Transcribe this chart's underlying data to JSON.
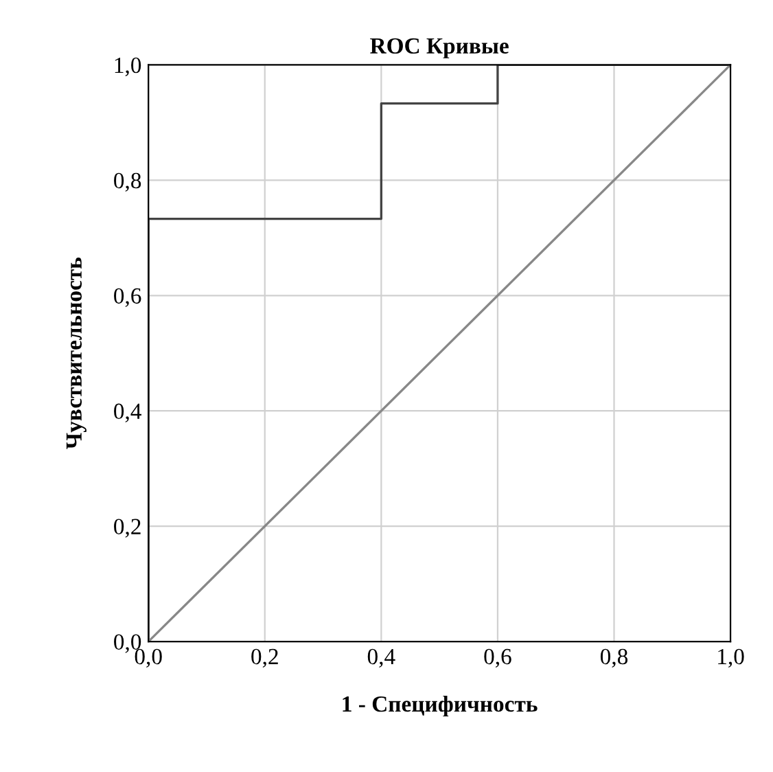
{
  "chart_data": {
    "type": "line",
    "title": "ROC Кривые",
    "xlabel": "1 - Специфичность",
    "ylabel": "Чувствительность",
    "series": [
      {
        "color": "#444444",
        "x": [
          0,
          0,
          0.4,
          0.4,
          0.6,
          0.6,
          1.0
        ],
        "values": [
          0,
          0.733,
          0.733,
          0.933,
          0.933,
          1.0,
          1.0
        ]
      },
      {
        "color": "#888888",
        "x": [
          0,
          1.0
        ],
        "values": [
          0,
          1.0
        ]
      }
    ],
    "xlim": [
      0,
      1.0
    ],
    "ylim": [
      0,
      1.0
    ],
    "xticks": [
      {
        "value": 0,
        "label": "0,0"
      },
      {
        "value": 0.2,
        "label": "0,2"
      },
      {
        "value": 0.4,
        "label": "0,4"
      },
      {
        "value": 0.6,
        "label": "0,6"
      },
      {
        "value": 0.8,
        "label": "0,8"
      },
      {
        "value": 1.0,
        "label": "1,0"
      }
    ],
    "yticks": [
      {
        "value": 0,
        "label": "0,0"
      },
      {
        "value": 0.2,
        "label": "0,2"
      },
      {
        "value": 0.4,
        "label": "0,4"
      },
      {
        "value": 0.6,
        "label": "0,6"
      },
      {
        "value": 0.8,
        "label": "0,8"
      },
      {
        "value": 1.0,
        "label": "1,0"
      }
    ],
    "grid": true,
    "marker": "none",
    "line_style": "solid"
  }
}
